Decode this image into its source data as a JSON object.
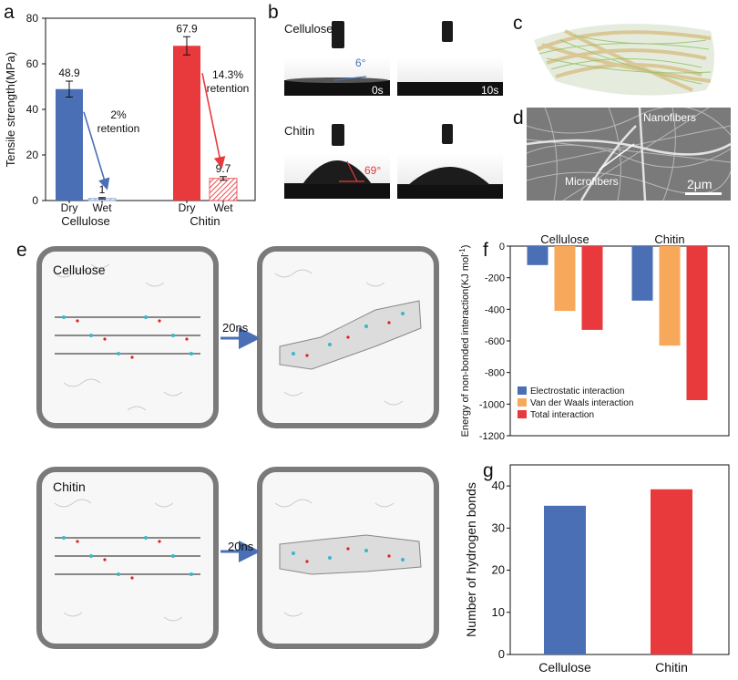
{
  "panels": {
    "a": "a",
    "b": "b",
    "c": "c",
    "d": "d",
    "e": "e",
    "f": "f",
    "g": "g"
  },
  "panel_b": {
    "cellulose_label": "Cellulose",
    "chitin_label": "Chitin",
    "cellulose_angle": "6°",
    "chitin_angle": "69°",
    "time_0": "0s",
    "time_10": "10s"
  },
  "panel_d": {
    "nanofibers": "Nanofibers",
    "microfibers": "Microfibers",
    "scale": "2μm"
  },
  "panel_e": {
    "cellulose_label": "Cellulose",
    "chitin_label": "Chitin",
    "arrow1": "20ns",
    "arrow2": "20ns"
  },
  "colors": {
    "blue": "#4a6fb5",
    "orange": "#f8a85b",
    "red": "#e8393c"
  },
  "chart_data": [
    {
      "id": "a",
      "type": "bar",
      "ylabel": "Tensile strength(MPa)",
      "ylim": [
        0,
        80
      ],
      "yticks": [
        0,
        20,
        40,
        60,
        80
      ],
      "groups": [
        "Cellulose",
        "Chitin"
      ],
      "bars": [
        {
          "group": "Cellulose",
          "label": "Dry",
          "value": 48.9,
          "value_label": "48.9",
          "error": 3.5,
          "color": "#4a6fb5",
          "hatch": false
        },
        {
          "group": "Cellulose",
          "label": "Wet",
          "value": 1,
          "value_label": "1",
          "error": 0.3,
          "color": "#9fb6dc",
          "hatch": true
        },
        {
          "group": "Chitin",
          "label": "Dry",
          "value": 67.9,
          "value_label": "67.9",
          "error": 4.0,
          "color": "#e8393c",
          "hatch": false
        },
        {
          "group": "Chitin",
          "label": "Wet",
          "value": 9.7,
          "value_label": "9.7",
          "error": 0.8,
          "color": "#e8393c",
          "hatch": true
        }
      ],
      "annotations": [
        {
          "text1": "2%",
          "text2": "retention",
          "color": "#4a6fb5"
        },
        {
          "text1": "14.3%",
          "text2": "retention",
          "color": "#e8393c"
        }
      ]
    },
    {
      "id": "f",
      "type": "bar",
      "ylabel": "Energy of non-bonded interaction(KJ mol",
      "ylabel_sup": "-1",
      "ylabel_end": ")",
      "ylim": [
        -1200,
        0
      ],
      "yticks": [
        0,
        -200,
        -400,
        -600,
        -800,
        -1000,
        -1200
      ],
      "categories": [
        "Cellulose",
        "Chitin"
      ],
      "series": [
        {
          "name": "Electrostatic interaction",
          "values": [
            -120,
            -345
          ],
          "color": "#4a6fb5"
        },
        {
          "name": "Van der Waals interaction",
          "values": [
            -410,
            -630
          ],
          "color": "#f8a85b"
        },
        {
          "name": "Total interaction",
          "values": [
            -530,
            -975
          ],
          "color": "#e8393c"
        }
      ]
    },
    {
      "id": "g",
      "type": "bar",
      "ylabel": "Number of hydrogen bonds",
      "ylim": [
        0,
        45
      ],
      "yticks": [
        0,
        10,
        20,
        30,
        40
      ],
      "categories": [
        "Cellulose",
        "Chitin"
      ],
      "values": [
        35.3,
        39.2
      ],
      "colors": [
        "#4a6fb5",
        "#e8393c"
      ]
    }
  ]
}
